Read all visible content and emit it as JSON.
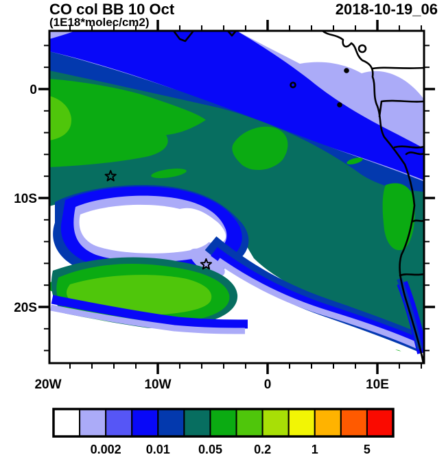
{
  "header": {
    "title": "CO col BB 10 Oct",
    "units": "(1E18*molec/cm2)",
    "datetime": "2018-10-19_06"
  },
  "chart_data": {
    "type": "heatmap",
    "subtype": "filled_contour_map",
    "title": "CO col BB 10 Oct",
    "units_label": "(1E18*molec/cm2)",
    "valid_time": "2018-10-19_06",
    "lon_range": [
      -20,
      14.3
    ],
    "lat_range": [
      -25.3,
      5.4
    ],
    "grid": false,
    "xaxis": {
      "major_ticks": [
        {
          "lon": -20,
          "label": "20W"
        },
        {
          "lon": -10,
          "label": "10W"
        },
        {
          "lon": 0,
          "label": "0"
        },
        {
          "lon": 10,
          "label": "10E"
        }
      ],
      "minor_tick_interval_deg": 2
    },
    "yaxis": {
      "major_ticks": [
        {
          "lat": 0,
          "label": "0"
        },
        {
          "lat": -10,
          "label": "10S"
        },
        {
          "lat": -20,
          "label": "20S"
        }
      ],
      "minor_tick_interval_deg": 2
    },
    "colorbar": {
      "orientation": "horizontal",
      "position": "bottom",
      "colors": [
        "#ffffff",
        "#ababf8",
        "#5656f6",
        "#0808f8",
        "#0339ae",
        "#076e60",
        "#0bab12",
        "#4fc60b",
        "#a8df06",
        "#f2f505",
        "#ffb300",
        "#ff5a00",
        "#fa0a00"
      ],
      "level_boundaries": [
        0.001,
        0.002,
        0.005,
        0.01,
        0.02,
        0.05,
        0.1,
        0.2,
        0.5,
        1,
        2,
        5
      ],
      "boundary_labels": [
        {
          "value": "0.002",
          "after_cell": 2
        },
        {
          "value": "0.01",
          "after_cell": 4
        },
        {
          "value": "0.05",
          "after_cell": 6
        },
        {
          "value": "0.2",
          "after_cell": 8
        },
        {
          "value": "1",
          "after_cell": 10
        },
        {
          "value": "5",
          "after_cell": 12
        }
      ]
    },
    "markers": [
      {
        "type": "star",
        "lon": -14.3,
        "lat": -8.0
      },
      {
        "type": "star",
        "lon": -5.6,
        "lat": -16.1
      }
    ],
    "map_overlays": [
      "african-west-coastline",
      "country-borders",
      "gulf-of-guinea-islands"
    ],
    "field_regions": [
      {
        "region": "central map plume (20W-10E, 2S-16S over ocean)",
        "approx_value_1e18": "0.02-0.05",
        "color": "teal"
      },
      {
        "region": "green patches W of 10W near 0-5S, center 2S-3S, and along Congo/Angola coast 2S-8S",
        "approx_value_1e18": "0.05-0.2",
        "color": "green"
      },
      {
        "region": "northern band 0-4N across map",
        "approx_value_1e18": "0.002-0.02",
        "color": "blue/navy"
      },
      {
        "region": "top-right land corner (Gabon/Cameroon) and far NE",
        "approx_value_1e18": "<0.001-0.002",
        "color": "white/lavender"
      },
      {
        "region": "clear eddy core near 14W, 12-14S",
        "approx_value_1e18": "<0.001",
        "color": "white"
      },
      {
        "region": "secondary plume blob 8-16W, 15-21S with bright core",
        "approx_value_1e18": "0.05-0.5",
        "color": "green/bright green"
      },
      {
        "region": "southern ocean S of ~21S and SE corner",
        "approx_value_1e18": "<0.001",
        "color": "white"
      }
    ]
  }
}
